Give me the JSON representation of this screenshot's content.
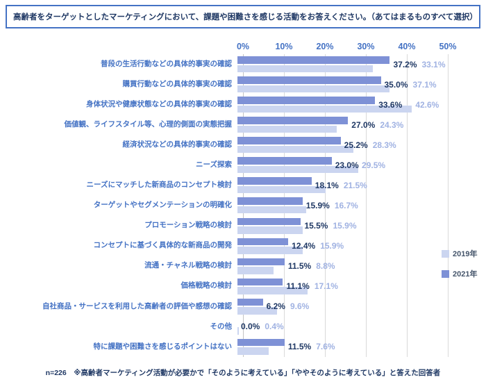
{
  "title": "高齢者をターゲットとしたマーケティングにおいて、課題や困難さを感じる活動をお答えください。（あてはまるものすべて選択）",
  "footnote": "n=226　※高齢者マーケティング活動が必要かで「そのように考えている」「ややそのように考えている」と答えた回答者",
  "colors": {
    "accent_blue": "#4472c4",
    "bar_2021": "#7e91d6",
    "bar_2019": "#cbd5f0",
    "value_label_2021": "#1f3864",
    "value_label_2019": "#a0b2e2",
    "gridline": "#d9d9d9",
    "title_text": "#1f3864",
    "title_border": "#4472c4",
    "legend_text": "#44546a",
    "footnote_text": "#1f3864"
  },
  "chart_data": {
    "type": "bar",
    "orientation": "horizontal",
    "title": "高齢者をターゲットとしたマーケティングにおいて、課題や困難さを感じる活動をお答えください。（あてはまるものすべて選択）",
    "categories": [
      "普段の生活行動などの具体的事実の確認",
      "購買行動などの具体的事実の確認",
      "身体状況や健康状態などの具体的事実の確認",
      "価値観、ライフスタイル等、心理的側面の実態把握",
      "経済状況などの具体的事実の確認",
      "ニーズ探索",
      "ニーズにマッチした新商品のコンセプト検討",
      "ターゲットやセグメンテーションの明確化",
      "プロモーション戦略の検討",
      "コンセプトに基づく具体的な新商品の開発",
      "流通・チャネル戦略の検討",
      "価格戦略の検討",
      "自社商品・サービスを利用した高齢者の評価や感想の確認",
      "その他",
      "特に課題や困難さを感じるポイントはない"
    ],
    "series": [
      {
        "name": "2019年",
        "values": [
          33.1,
          37.1,
          42.6,
          24.3,
          28.3,
          29.5,
          21.5,
          16.7,
          15.9,
          15.9,
          8.8,
          17.1,
          9.6,
          0.4,
          7.6
        ]
      },
      {
        "name": "2021年",
        "values": [
          37.2,
          35.0,
          33.6,
          27.0,
          25.2,
          23.0,
          18.1,
          15.9,
          15.5,
          12.4,
          11.5,
          11.1,
          6.2,
          0.0,
          11.5
        ]
      }
    ],
    "bars_per_category_top_to_bottom": [
      "2021年",
      "2019年"
    ],
    "x_ticks": [
      "0%",
      "10%",
      "20%",
      "30%",
      "40%",
      "50%"
    ],
    "xlim": [
      0,
      50
    ],
    "grid": true,
    "legend_position": "right",
    "sample_size": "n=226"
  }
}
